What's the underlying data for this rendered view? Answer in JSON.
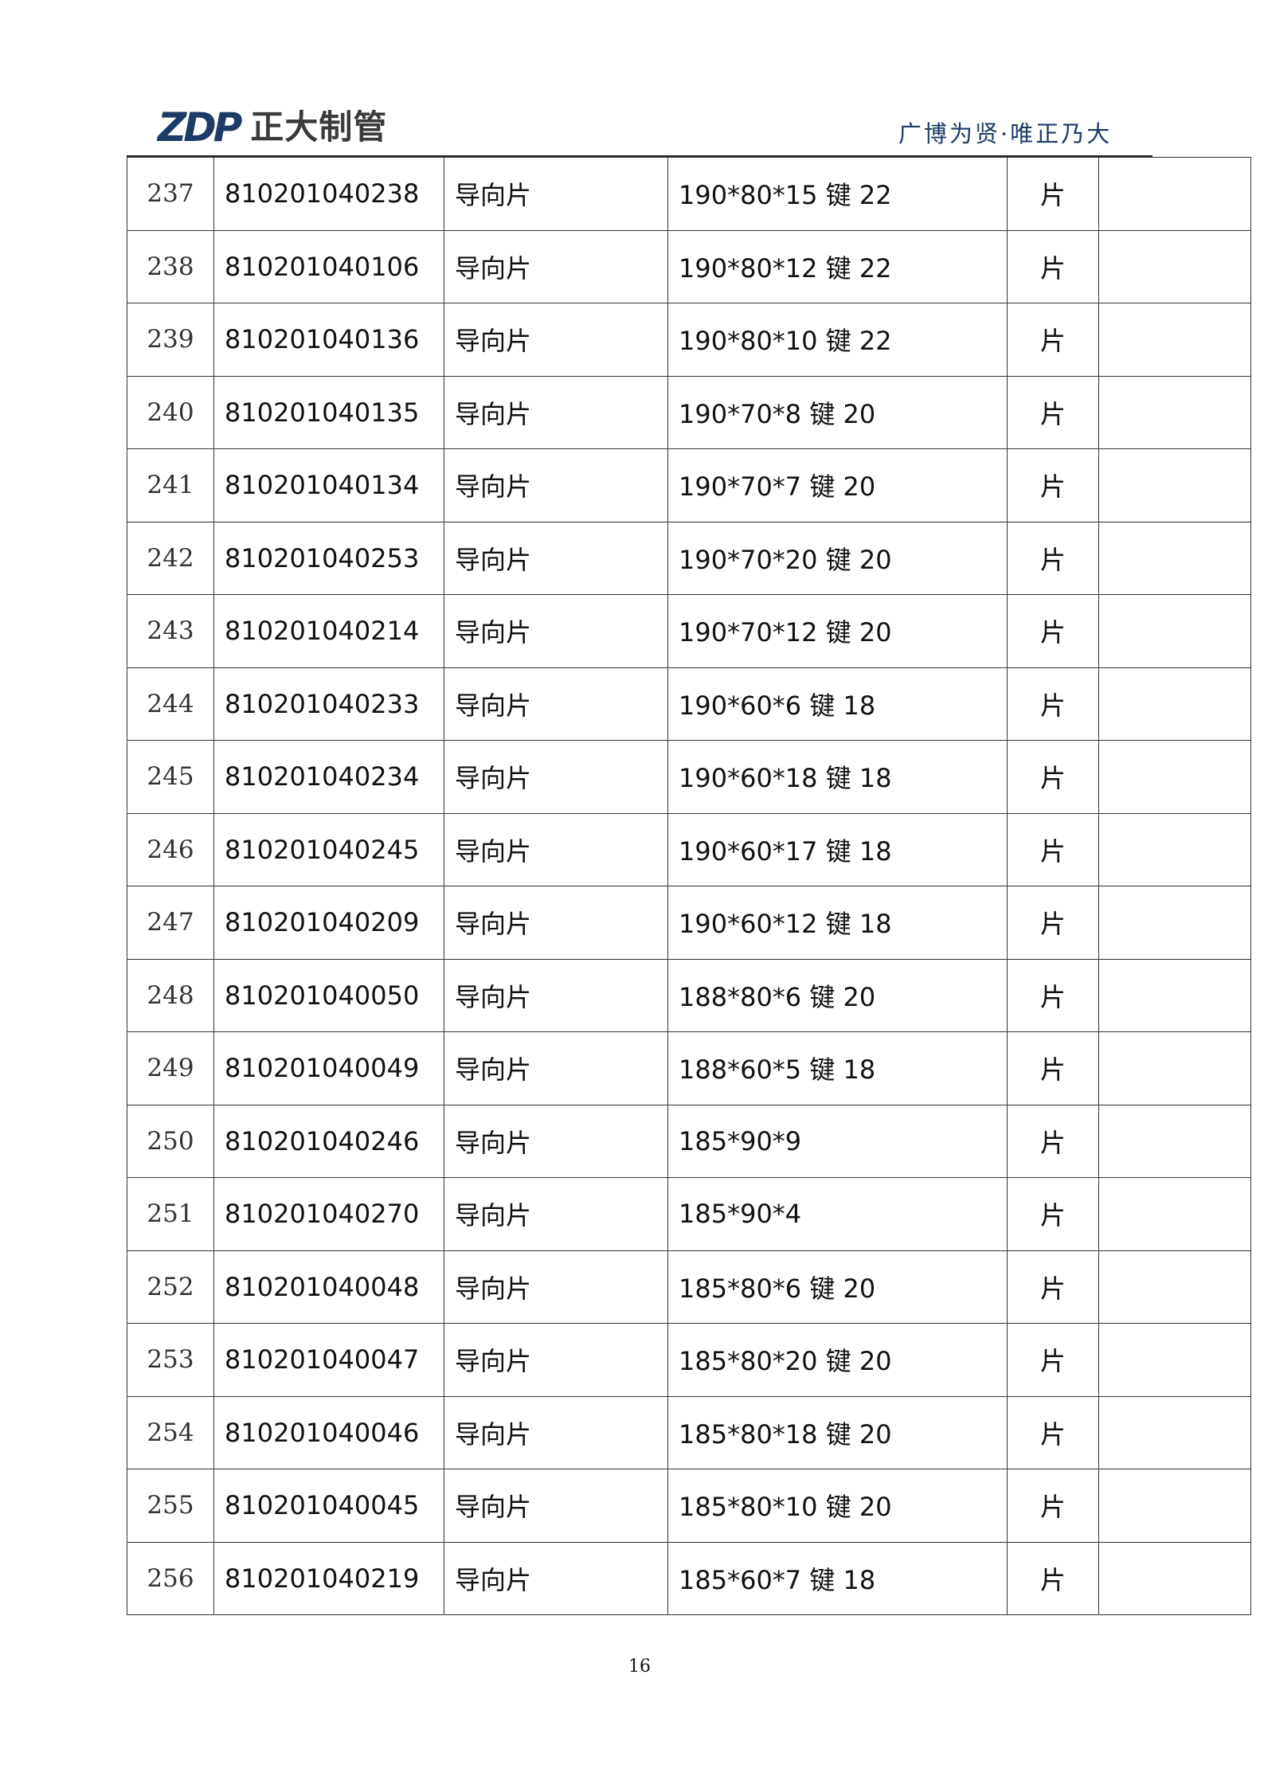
{
  "header": {
    "logo_mark": "ZDP",
    "logo_text": "正大制管",
    "tagline": "广博为贤·唯正乃大"
  },
  "rows": [
    {
      "no": "237",
      "code": "810201040238",
      "name": "导向片",
      "spec": "190*80*15 键 22",
      "unit": "片",
      "note": ""
    },
    {
      "no": "238",
      "code": "810201040106",
      "name": "导向片",
      "spec": "190*80*12 键 22",
      "unit": "片",
      "note": ""
    },
    {
      "no": "239",
      "code": "810201040136",
      "name": "导向片",
      "spec": "190*80*10 键 22",
      "unit": "片",
      "note": ""
    },
    {
      "no": "240",
      "code": "810201040135",
      "name": "导向片",
      "spec": "190*70*8 键 20",
      "unit": "片",
      "note": ""
    },
    {
      "no": "241",
      "code": "810201040134",
      "name": "导向片",
      "spec": "190*70*7 键 20",
      "unit": "片",
      "note": ""
    },
    {
      "no": "242",
      "code": "810201040253",
      "name": "导向片",
      "spec": "190*70*20 键 20",
      "unit": "片",
      "note": ""
    },
    {
      "no": "243",
      "code": "810201040214",
      "name": "导向片",
      "spec": "190*70*12 键 20",
      "unit": "片",
      "note": ""
    },
    {
      "no": "244",
      "code": "810201040233",
      "name": "导向片",
      "spec": "190*60*6 键 18",
      "unit": "片",
      "note": ""
    },
    {
      "no": "245",
      "code": "810201040234",
      "name": "导向片",
      "spec": "190*60*18 键 18",
      "unit": "片",
      "note": ""
    },
    {
      "no": "246",
      "code": "810201040245",
      "name": "导向片",
      "spec": "190*60*17 键 18",
      "unit": "片",
      "note": ""
    },
    {
      "no": "247",
      "code": "810201040209",
      "name": "导向片",
      "spec": "190*60*12 键 18",
      "unit": "片",
      "note": ""
    },
    {
      "no": "248",
      "code": "810201040050",
      "name": "导向片",
      "spec": "188*80*6 键 20",
      "unit": "片",
      "note": ""
    },
    {
      "no": "249",
      "code": "810201040049",
      "name": "导向片",
      "spec": "188*60*5 键 18",
      "unit": "片",
      "note": ""
    },
    {
      "no": "250",
      "code": "810201040246",
      "name": "导向片",
      "spec": "185*90*9",
      "unit": "片",
      "note": ""
    },
    {
      "no": "251",
      "code": "810201040270",
      "name": "导向片",
      "spec": "185*90*4",
      "unit": "片",
      "note": ""
    },
    {
      "no": "252",
      "code": "810201040048",
      "name": "导向片",
      "spec": "185*80*6 键 20",
      "unit": "片",
      "note": ""
    },
    {
      "no": "253",
      "code": "810201040047",
      "name": "导向片",
      "spec": "185*80*20 键 20",
      "unit": "片",
      "note": ""
    },
    {
      "no": "254",
      "code": "810201040046",
      "name": "导向片",
      "spec": "185*80*18 键 20",
      "unit": "片",
      "note": ""
    },
    {
      "no": "255",
      "code": "810201040045",
      "name": "导向片",
      "spec": "185*80*10 键 20",
      "unit": "片",
      "note": ""
    },
    {
      "no": "256",
      "code": "810201040219",
      "name": "导向片",
      "spec": "185*60*7 键 18",
      "unit": "片",
      "note": ""
    }
  ],
  "footer": {
    "page_number": "16"
  }
}
